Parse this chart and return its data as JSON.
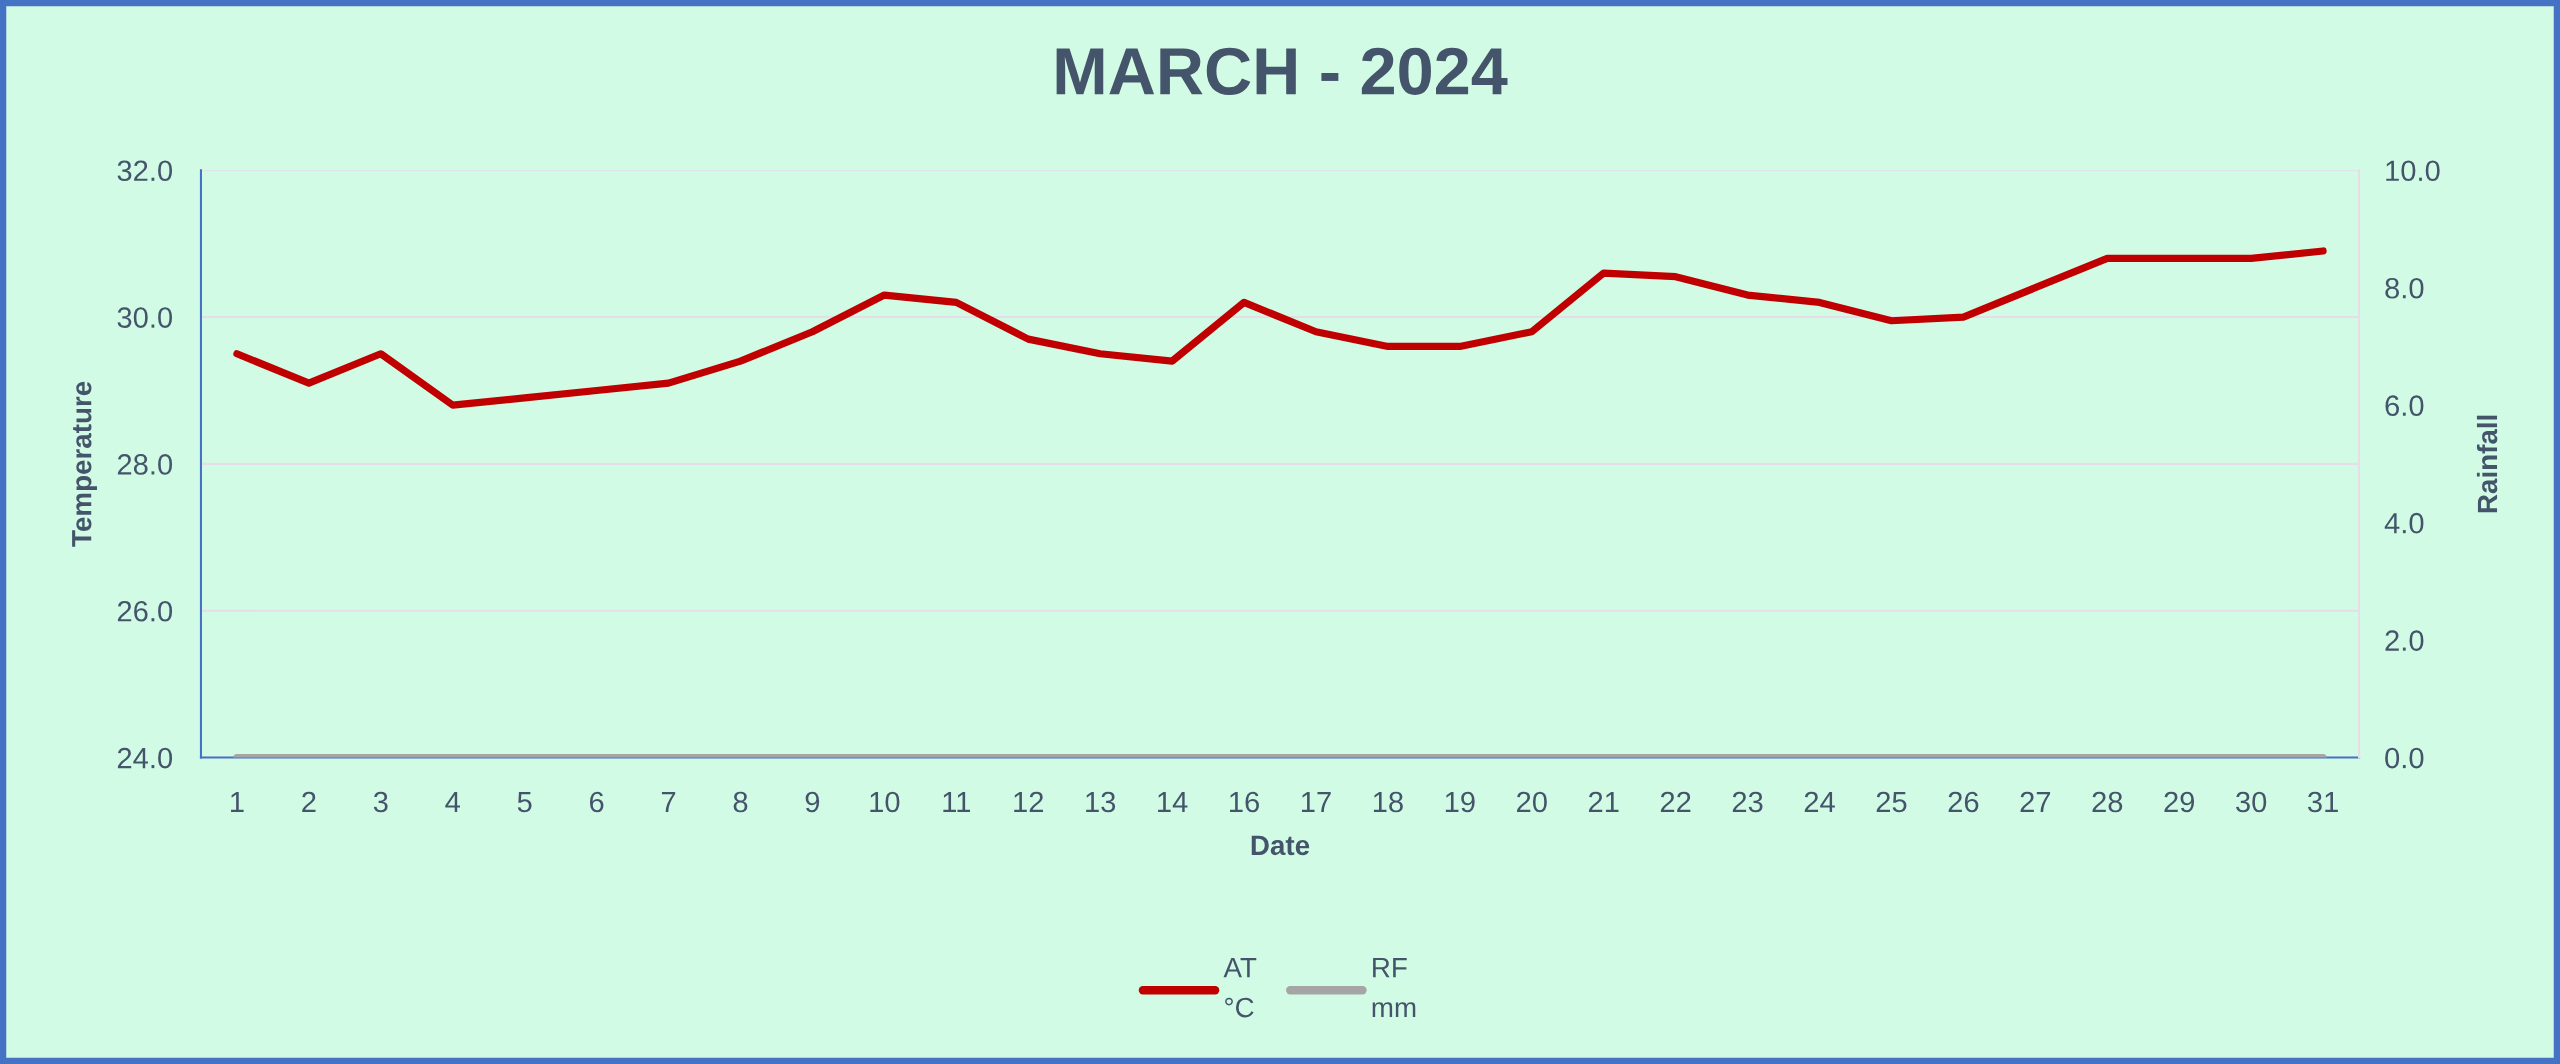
{
  "chart_data": {
    "type": "line",
    "title": "MARCH - 2024",
    "xlabel": "Date",
    "ylabel": "Temperature",
    "y2label": "Rainfall",
    "categories": [
      "1",
      "2",
      "3",
      "4",
      "5",
      "6",
      "7",
      "8",
      "9",
      "10",
      "11",
      "12",
      "13",
      "14",
      "16",
      "17",
      "18",
      "19",
      "20",
      "21",
      "22",
      "23",
      "24",
      "25",
      "26",
      "27",
      "28",
      "29",
      "30",
      "31"
    ],
    "series": [
      {
        "name": "AT\n°C",
        "color": "#c00000",
        "values": [
          29.5,
          29.1,
          29.5,
          28.8,
          28.9,
          29.0,
          29.1,
          29.4,
          29.8,
          30.3,
          30.2,
          29.7,
          29.5,
          29.4,
          30.2,
          29.8,
          29.6,
          29.6,
          29.8,
          30.6,
          30.55,
          30.3,
          30.2,
          29.95,
          30.0,
          30.4,
          30.8,
          30.8,
          30.8,
          30.9
        ]
      },
      {
        "name": "RF\nmm",
        "color": "#a5a5a5",
        "axis": "y2",
        "values": [
          0,
          0,
          0,
          0,
          0,
          0,
          0,
          0,
          0,
          0,
          0,
          0,
          0,
          0,
          0,
          0,
          0,
          0,
          0,
          0,
          0,
          0,
          0,
          0,
          0,
          0,
          0,
          0,
          0,
          0
        ]
      }
    ],
    "ylim": [
      24,
      32
    ],
    "yticks": [
      {
        "value": 24,
        "label": "24.0"
      },
      {
        "value": 26,
        "label": "26.0"
      },
      {
        "value": 28,
        "label": "28.0"
      },
      {
        "value": 30,
        "label": "30.0"
      },
      {
        "value": 32,
        "label": "32.0"
      }
    ],
    "y2lim": [
      0,
      10
    ],
    "y2ticks": [
      {
        "value": 0,
        "label": "0.0"
      },
      {
        "value": 2,
        "label": "2.0"
      },
      {
        "value": 4,
        "label": "4.0"
      },
      {
        "value": 6,
        "label": "6.0"
      },
      {
        "value": 8,
        "label": "8.0"
      },
      {
        "value": 10,
        "label": "10.0"
      }
    ],
    "grid": "y",
    "legend": "bottom",
    "line_style": "solid"
  }
}
